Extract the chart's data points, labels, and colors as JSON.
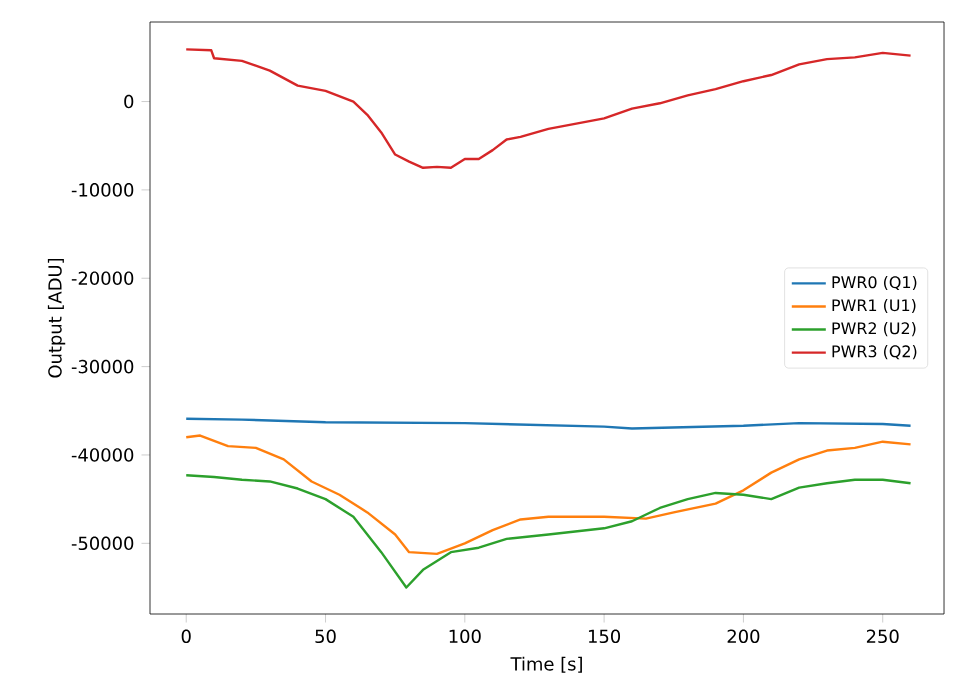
{
  "chart_data": {
    "type": "line",
    "xlabel": "Time [s]",
    "ylabel": "Output [ADU]",
    "xlim": [
      -13,
      272
    ],
    "ylim": [
      -58000,
      9000
    ],
    "xticks": [
      0,
      50,
      100,
      150,
      200,
      250
    ],
    "yticks": [
      -50000,
      -40000,
      -30000,
      -20000,
      -10000,
      0
    ],
    "legend": "right",
    "series": [
      {
        "name": "PWR0 (Q1)",
        "color": "#1f77b4",
        "x": [
          0,
          20,
          50,
          100,
          150,
          160,
          200,
          220,
          250,
          260
        ],
        "values": [
          -35900,
          -36000,
          -36300,
          -36400,
          -36800,
          -37000,
          -36700,
          -36400,
          -36500,
          -36700
        ]
      },
      {
        "name": "PWR1 (U1)",
        "color": "#ff7f0e",
        "x": [
          0,
          5,
          15,
          25,
          35,
          45,
          55,
          65,
          75,
          80,
          90,
          100,
          110,
          120,
          130,
          150,
          165,
          175,
          190,
          200,
          210,
          220,
          230,
          240,
          250,
          260
        ],
        "values": [
          -38000,
          -37800,
          -39000,
          -39200,
          -40500,
          -43000,
          -44500,
          -46500,
          -49000,
          -51000,
          -51200,
          -50000,
          -48500,
          -47300,
          -47000,
          -47000,
          -47200,
          -46500,
          -45500,
          -44000,
          -42000,
          -40500,
          -39500,
          -39200,
          -38500,
          -38800
        ]
      },
      {
        "name": "PWR2 (U2)",
        "color": "#2ca02c",
        "x": [
          0,
          10,
          20,
          30,
          40,
          50,
          60,
          70,
          79,
          85,
          95,
          105,
          115,
          130,
          150,
          160,
          170,
          180,
          190,
          200,
          210,
          220,
          230,
          240,
          250,
          260
        ],
        "values": [
          -42300,
          -42500,
          -42800,
          -43000,
          -43800,
          -45000,
          -47000,
          -51000,
          -55000,
          -53000,
          -51000,
          -50500,
          -49500,
          -49000,
          -48300,
          -47500,
          -46000,
          -45000,
          -44300,
          -44500,
          -45000,
          -43700,
          -43200,
          -42800,
          -42800,
          -43200
        ]
      },
      {
        "name": "PWR3 (Q2)",
        "color": "#d62728",
        "x": [
          0,
          9,
          10,
          20,
          30,
          40,
          50,
          60,
          65,
          70,
          75,
          80,
          85,
          90,
          95,
          100,
          105,
          110,
          115,
          120,
          130,
          140,
          150,
          160,
          170,
          180,
          190,
          200,
          210,
          220,
          230,
          240,
          250,
          260
        ],
        "values": [
          5900,
          5800,
          4900,
          4600,
          3500,
          1800,
          1200,
          0,
          -1500,
          -3500,
          -6000,
          -6800,
          -7500,
          -7400,
          -7500,
          -6500,
          -6500,
          -5500,
          -4300,
          -4000,
          -3100,
          -2500,
          -1900,
          -800,
          -200,
          700,
          1400,
          2300,
          3000,
          4200,
          4800,
          5000,
          5500,
          5200
        ]
      }
    ]
  }
}
